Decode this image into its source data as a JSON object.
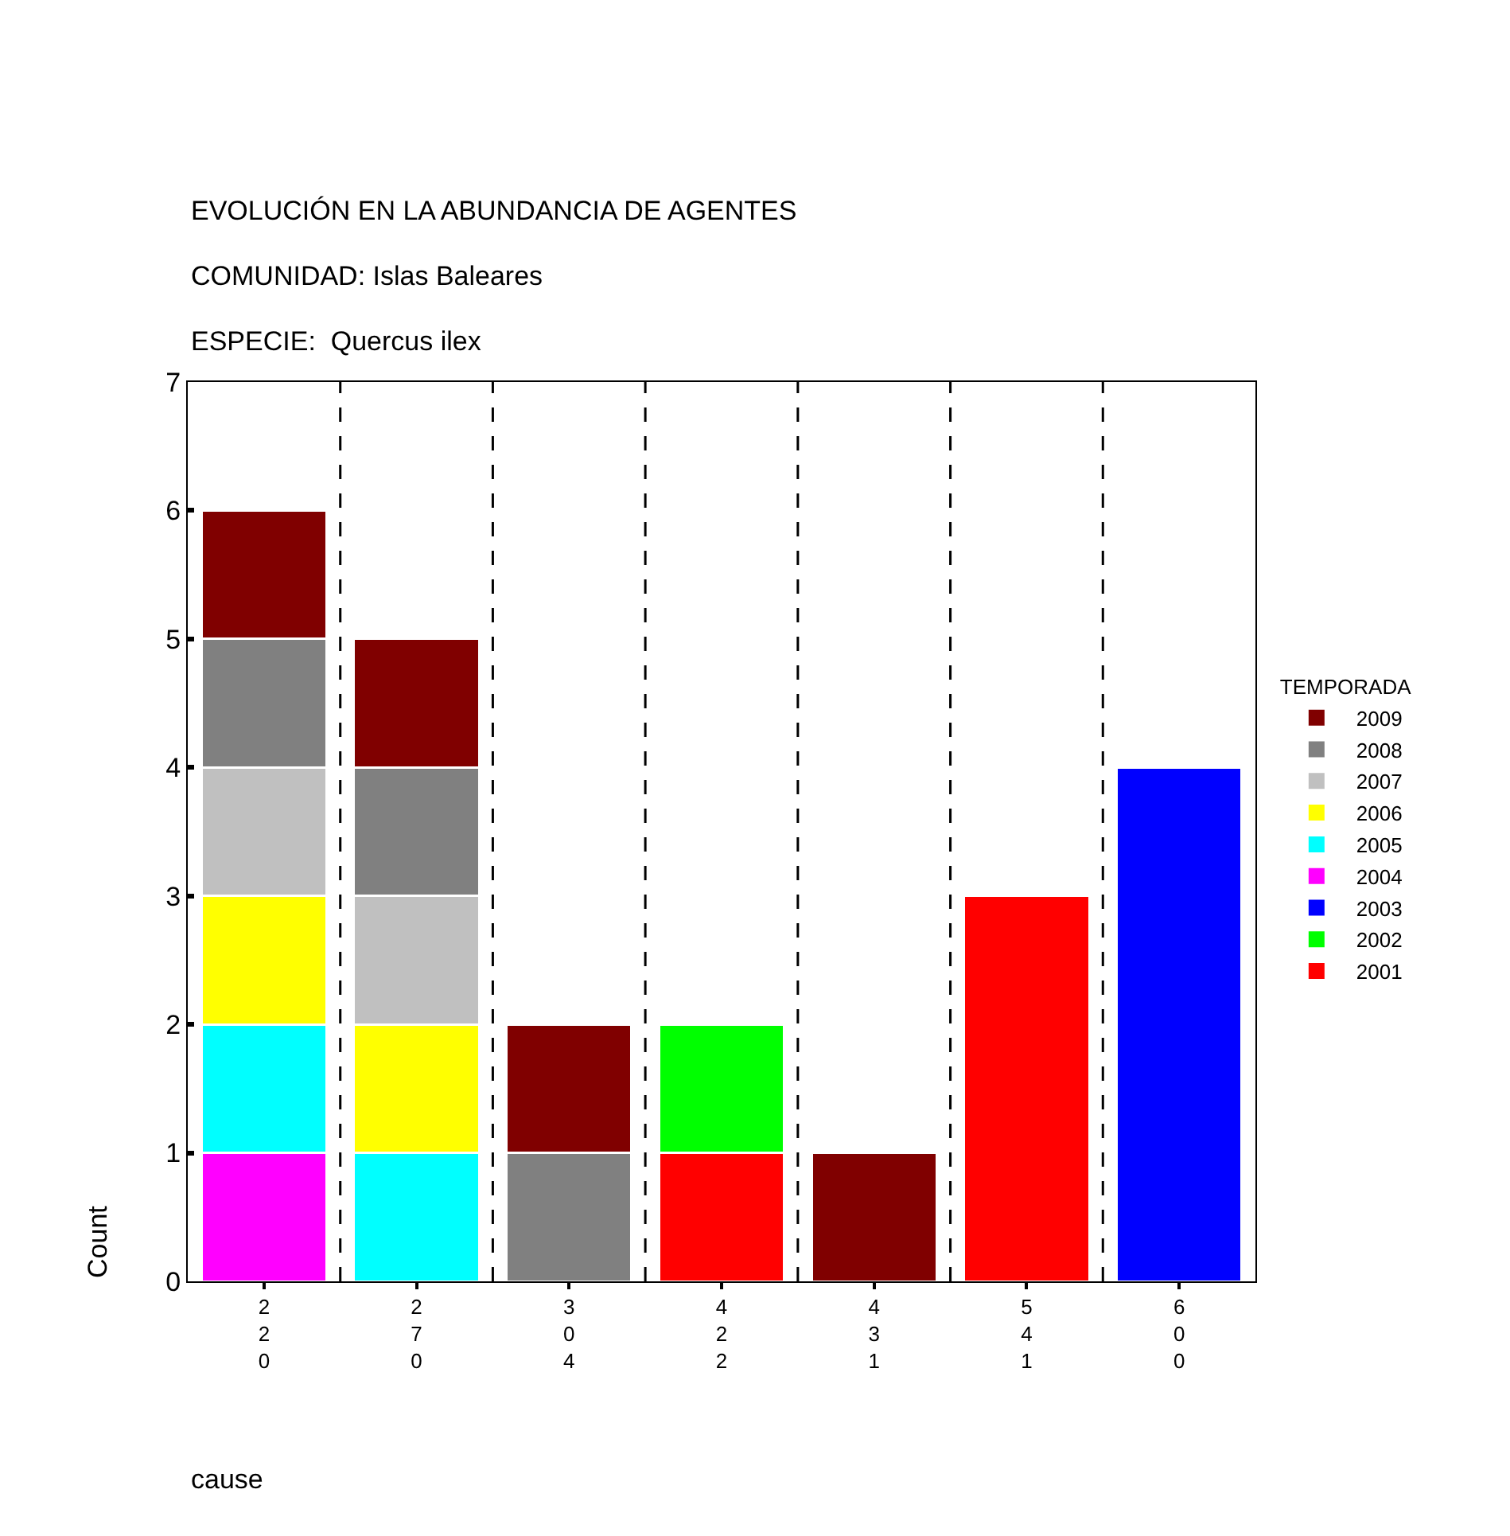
{
  "chart_data": {
    "type": "bar",
    "title": "EVOLUCIÓN EN LA ABUNDANCIA DE AGENTES",
    "subtitle": "COMUNIDAD: Islas Baleares",
    "annotations": [
      "ESPECIE:  Quercus ilex"
    ],
    "xlabel": "cause",
    "ylabel": "Count",
    "legend_title": "TEMPORADA",
    "categories": [
      "220",
      "270",
      "304",
      "422",
      "431",
      "541",
      "600"
    ],
    "stacked": true,
    "series": [
      {
        "name": "2001",
        "color": "#ff0000",
        "values": [
          null,
          null,
          null,
          1,
          null,
          3,
          null
        ]
      },
      {
        "name": "2002",
        "color": "#00ff00",
        "values": [
          null,
          null,
          null,
          1,
          null,
          null,
          null
        ]
      },
      {
        "name": "2003",
        "color": "#0000ff",
        "values": [
          null,
          null,
          null,
          null,
          null,
          null,
          4
        ]
      },
      {
        "name": "2004",
        "color": "#ff00ff",
        "values": [
          1,
          null,
          null,
          null,
          null,
          null,
          null
        ]
      },
      {
        "name": "2005",
        "color": "#00ffff",
        "values": [
          1,
          1,
          null,
          null,
          null,
          null,
          null
        ]
      },
      {
        "name": "2006",
        "color": "#ffff00",
        "values": [
          1,
          1,
          null,
          null,
          null,
          null,
          null
        ]
      },
      {
        "name": "2007",
        "color": "#c0c0c0",
        "values": [
          1,
          1,
          null,
          null,
          null,
          null,
          null
        ]
      },
      {
        "name": "2008",
        "color": "#808080",
        "values": [
          1,
          1,
          1,
          null,
          null,
          null,
          null
        ]
      },
      {
        "name": "2009",
        "color": "#800000",
        "values": [
          1,
          1,
          1,
          null,
          1,
          null,
          null
        ]
      }
    ],
    "ylim": [
      0,
      7
    ],
    "yticks": [
      0,
      1,
      2,
      3,
      4,
      5,
      6,
      7
    ],
    "grid": "x",
    "legend": "right"
  }
}
